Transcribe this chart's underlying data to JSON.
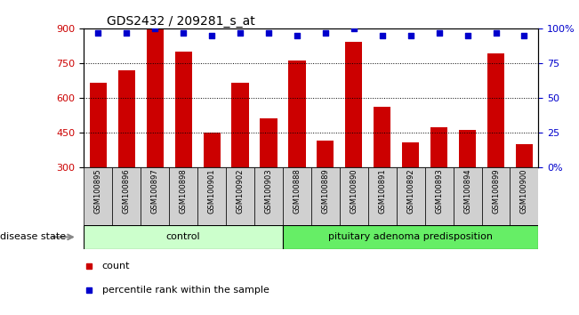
{
  "title": "GDS2432 / 209281_s_at",
  "samples": [
    "GSM100895",
    "GSM100896",
    "GSM100897",
    "GSM100898",
    "GSM100901",
    "GSM100902",
    "GSM100903",
    "GSM100888",
    "GSM100889",
    "GSM100890",
    "GSM100891",
    "GSM100892",
    "GSM100893",
    "GSM100894",
    "GSM100899",
    "GSM100900"
  ],
  "counts": [
    665,
    720,
    895,
    800,
    450,
    665,
    510,
    760,
    415,
    840,
    560,
    405,
    470,
    460,
    790,
    400
  ],
  "percentiles": [
    97,
    97,
    100,
    97,
    95,
    97,
    97,
    95,
    97,
    100,
    95,
    95,
    97,
    95,
    97,
    95
  ],
  "groups": [
    {
      "label": "control",
      "start": 0,
      "end": 7,
      "color": "#ccffcc"
    },
    {
      "label": "pituitary adenoma predisposition",
      "start": 7,
      "end": 16,
      "color": "#66ee66"
    }
  ],
  "ylim_left": [
    300,
    900
  ],
  "ylim_right": [
    0,
    100
  ],
  "yticks_left": [
    300,
    450,
    600,
    750,
    900
  ],
  "yticks_right": [
    0,
    25,
    50,
    75,
    100
  ],
  "bar_color": "#cc0000",
  "dot_color": "#0000cc",
  "background_color": "#ffffff",
  "label_box_color": "#d0d0d0",
  "disease_state_label": "disease state",
  "legend_items": [
    {
      "color": "#cc0000",
      "label": "count"
    },
    {
      "color": "#0000cc",
      "label": "percentile rank within the sample"
    }
  ]
}
